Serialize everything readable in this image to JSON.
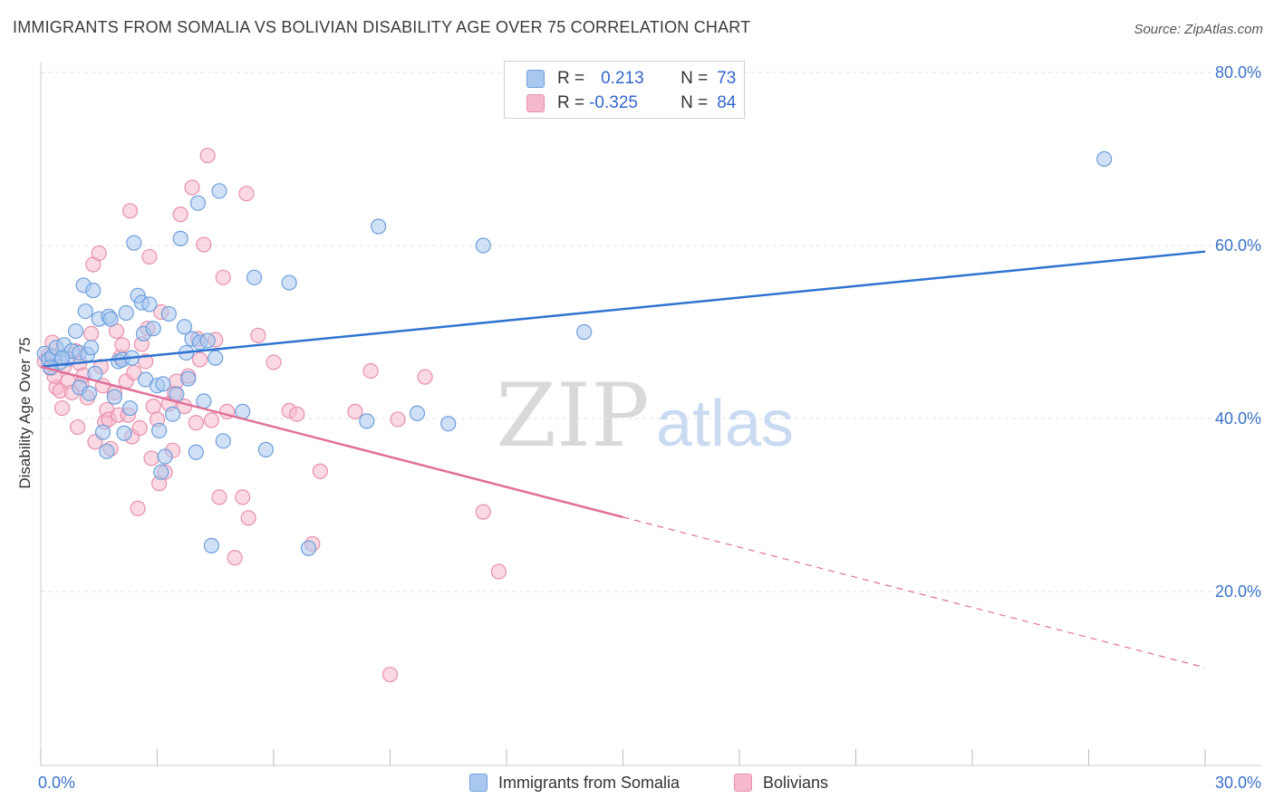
{
  "title": "IMMIGRANTS FROM SOMALIA VS BOLIVIAN DISABILITY AGE OVER 75 CORRELATION CHART",
  "source": "Source: ZipAtlas.com",
  "watermark": {
    "zip": "ZIP",
    "atlas": "atlas"
  },
  "legend": {
    "rows": [
      {
        "r_label": "R =",
        "r_value": "0.213",
        "n_label": "N =",
        "n_value": "73"
      },
      {
        "r_label": "R =",
        "r_value": "-0.325",
        "n_label": "N =",
        "n_value": "84"
      }
    ]
  },
  "colors": {
    "blue_fill": "#a9c8f0",
    "blue_stroke": "#6d9fdb",
    "blue_line": "#2f74d0",
    "pink_fill": "#f6b9cc",
    "pink_stroke": "#e88fac",
    "pink_line": "#e07099",
    "axis_text": "#3a72c8",
    "grid": "#e2e2e2"
  },
  "chart_data": {
    "type": "scatter",
    "title": "IMMIGRANTS FROM SOMALIA VS BOLIVIAN DISABILITY AGE OVER 75 CORRELATION CHART",
    "xlabel": "",
    "ylabel": "Disability Age Over 75",
    "xlim": [
      0,
      30
    ],
    "ylim": [
      0,
      85
    ],
    "x_tick_labels": [
      {
        "value": 0,
        "label": "0.0%"
      },
      {
        "value": 30,
        "label": "30.0%"
      }
    ],
    "y_tick_labels": [
      {
        "value": 20,
        "label": "20.0%"
      },
      {
        "value": 40,
        "label": "40.0%"
      },
      {
        "value": 60,
        "label": "60.0%"
      },
      {
        "value": 80,
        "label": "80.0%"
      }
    ],
    "grid": true,
    "legend_position": "top-center",
    "series": [
      {
        "name": "Immigrants from Somalia",
        "color": "#6d9fdb",
        "trend": {
          "x0": 0,
          "y0": 46.0,
          "x1": 30,
          "y1": 59.3,
          "dashed_from": null
        },
        "points": [
          [
            0.1,
            47.5
          ],
          [
            0.2,
            46.8
          ],
          [
            0.3,
            47.2
          ],
          [
            0.4,
            48.2
          ],
          [
            0.5,
            46.5
          ],
          [
            0.6,
            48.5
          ],
          [
            0.7,
            46.9
          ],
          [
            0.8,
            47.8
          ],
          [
            0.9,
            50.1
          ],
          [
            1.0,
            47.6
          ],
          [
            1.0,
            43.6
          ],
          [
            1.1,
            55.4
          ],
          [
            1.15,
            52.4
          ],
          [
            1.2,
            47.4
          ],
          [
            1.3,
            48.2
          ],
          [
            1.35,
            54.8
          ],
          [
            1.4,
            45.2
          ],
          [
            1.5,
            51.5
          ],
          [
            1.6,
            38.4
          ],
          [
            1.7,
            36.2
          ],
          [
            1.75,
            51.8
          ],
          [
            1.8,
            51.5
          ],
          [
            1.9,
            42.5
          ],
          [
            2.0,
            46.6
          ],
          [
            2.1,
            46.8
          ],
          [
            2.2,
            52.2
          ],
          [
            2.3,
            41.2
          ],
          [
            2.35,
            47.0
          ],
          [
            2.4,
            60.3
          ],
          [
            2.5,
            54.2
          ],
          [
            2.6,
            53.4
          ],
          [
            2.65,
            49.8
          ],
          [
            2.7,
            44.5
          ],
          [
            2.8,
            53.2
          ],
          [
            2.9,
            50.4
          ],
          [
            3.0,
            43.8
          ],
          [
            3.05,
            38.6
          ],
          [
            3.1,
            33.8
          ],
          [
            3.2,
            35.6
          ],
          [
            3.3,
            52.1
          ],
          [
            3.4,
            40.5
          ],
          [
            3.5,
            42.8
          ],
          [
            3.6,
            60.8
          ],
          [
            3.7,
            50.6
          ],
          [
            3.75,
            47.6
          ],
          [
            3.8,
            44.6
          ],
          [
            3.9,
            49.2
          ],
          [
            4.0,
            36.1
          ],
          [
            4.05,
            64.9
          ],
          [
            4.1,
            48.8
          ],
          [
            4.2,
            42.0
          ],
          [
            4.3,
            49.0
          ],
          [
            4.4,
            25.3
          ],
          [
            4.5,
            47.0
          ],
          [
            4.6,
            66.3
          ],
          [
            4.7,
            37.4
          ],
          [
            5.2,
            40.8
          ],
          [
            5.5,
            56.3
          ],
          [
            5.8,
            36.4
          ],
          [
            6.4,
            55.7
          ],
          [
            6.9,
            25.0
          ],
          [
            8.4,
            39.7
          ],
          [
            8.7,
            62.2
          ],
          [
            9.7,
            40.6
          ],
          [
            10.5,
            39.4
          ],
          [
            11.4,
            60.0
          ],
          [
            14.0,
            50.0
          ],
          [
            27.4,
            70.0
          ],
          [
            0.25,
            45.9
          ],
          [
            0.55,
            47.0
          ],
          [
            1.25,
            42.9
          ],
          [
            2.15,
            38.3
          ],
          [
            3.15,
            44.0
          ]
        ]
      },
      {
        "name": "Bolivians",
        "color": "#e88fac",
        "trend": {
          "x0": 0,
          "y0": 46.0,
          "x1": 30,
          "y1": 11.2,
          "dashed_from": 15.0
        },
        "points": [
          [
            0.1,
            46.6
          ],
          [
            0.2,
            47.3
          ],
          [
            0.25,
            45.8
          ],
          [
            0.3,
            48.8
          ],
          [
            0.4,
            43.6
          ],
          [
            0.5,
            43.2
          ],
          [
            0.55,
            41.2
          ],
          [
            0.6,
            46.0
          ],
          [
            0.7,
            44.3
          ],
          [
            0.8,
            43.0
          ],
          [
            0.9,
            47.8
          ],
          [
            0.95,
            39.0
          ],
          [
            1.0,
            46.4
          ],
          [
            1.05,
            44.0
          ],
          [
            1.1,
            45.0
          ],
          [
            1.2,
            42.4
          ],
          [
            1.3,
            49.8
          ],
          [
            1.35,
            57.8
          ],
          [
            1.4,
            37.3
          ],
          [
            1.5,
            59.1
          ],
          [
            1.55,
            46.0
          ],
          [
            1.6,
            43.8
          ],
          [
            1.65,
            39.6
          ],
          [
            1.7,
            41.0
          ],
          [
            1.75,
            39.9
          ],
          [
            1.8,
            36.5
          ],
          [
            1.9,
            43.0
          ],
          [
            1.95,
            50.1
          ],
          [
            2.0,
            40.4
          ],
          [
            2.05,
            47.1
          ],
          [
            2.1,
            48.5
          ],
          [
            2.2,
            44.3
          ],
          [
            2.25,
            40.4
          ],
          [
            2.3,
            64.0
          ],
          [
            2.35,
            37.9
          ],
          [
            2.4,
            45.3
          ],
          [
            2.5,
            29.6
          ],
          [
            2.55,
            38.9
          ],
          [
            2.6,
            48.6
          ],
          [
            2.7,
            46.6
          ],
          [
            2.75,
            50.4
          ],
          [
            2.8,
            58.7
          ],
          [
            2.85,
            35.4
          ],
          [
            2.9,
            41.4
          ],
          [
            3.0,
            39.9
          ],
          [
            3.05,
            32.5
          ],
          [
            3.1,
            52.3
          ],
          [
            3.2,
            33.8
          ],
          [
            3.3,
            41.7
          ],
          [
            3.4,
            36.3
          ],
          [
            3.45,
            42.9
          ],
          [
            3.5,
            44.3
          ],
          [
            3.6,
            63.6
          ],
          [
            3.7,
            41.4
          ],
          [
            3.8,
            44.9
          ],
          [
            3.9,
            66.7
          ],
          [
            4.0,
            39.5
          ],
          [
            4.05,
            49.2
          ],
          [
            4.1,
            46.8
          ],
          [
            4.2,
            60.1
          ],
          [
            4.3,
            70.4
          ],
          [
            4.4,
            39.8
          ],
          [
            4.5,
            49.1
          ],
          [
            4.6,
            30.9
          ],
          [
            4.7,
            56.3
          ],
          [
            4.8,
            40.8
          ],
          [
            5.0,
            23.9
          ],
          [
            5.2,
            30.9
          ],
          [
            5.3,
            66.0
          ],
          [
            5.35,
            28.5
          ],
          [
            5.6,
            49.6
          ],
          [
            6.0,
            46.5
          ],
          [
            6.4,
            40.9
          ],
          [
            6.6,
            40.5
          ],
          [
            7.0,
            25.5
          ],
          [
            7.2,
            33.9
          ],
          [
            8.1,
            40.8
          ],
          [
            8.5,
            45.5
          ],
          [
            9.0,
            10.4
          ],
          [
            9.2,
            39.9
          ],
          [
            9.9,
            44.8
          ],
          [
            11.4,
            29.2
          ],
          [
            11.8,
            22.3
          ],
          [
            0.35,
            44.9
          ]
        ]
      }
    ]
  },
  "bottom_legend": [
    "Immigrants from Somalia",
    "Bolivians"
  ]
}
